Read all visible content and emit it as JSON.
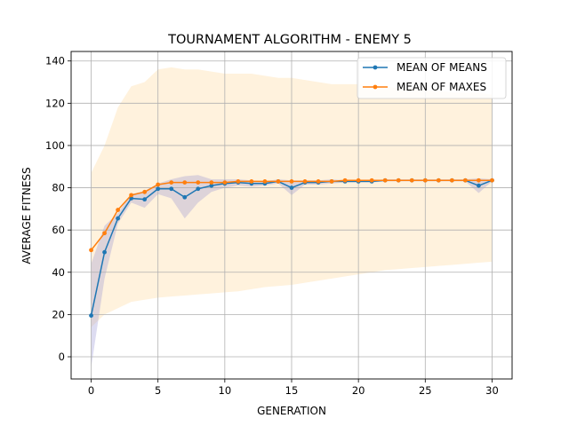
{
  "chart_data": {
    "type": "line",
    "title": "TOURNAMENT ALGORITHM - ENEMY 5",
    "xlabel": "GENERATION",
    "ylabel": "AVERAGE FITNESS",
    "xlim": [
      -1.5,
      31.5
    ],
    "ylim": [
      -10.5,
      144.5
    ],
    "xticks": [
      0,
      5,
      10,
      15,
      20,
      25,
      30
    ],
    "yticks": [
      0,
      20,
      40,
      60,
      80,
      100,
      120,
      140
    ],
    "grid": true,
    "legend_position": "top-right",
    "x": [
      0,
      1,
      2,
      3,
      4,
      5,
      6,
      7,
      8,
      9,
      10,
      11,
      12,
      13,
      14,
      15,
      16,
      17,
      18,
      19,
      20,
      21,
      22,
      23,
      24,
      25,
      26,
      27,
      28,
      29,
      30
    ],
    "series": [
      {
        "name": "MEAN OF MEANS",
        "color": "#1f77b4",
        "values": [
          19.5,
          49.5,
          65.5,
          75.0,
          74.5,
          79.5,
          79.5,
          75.5,
          79.5,
          81.0,
          82.0,
          82.5,
          82.0,
          82.0,
          83.0,
          80.0,
          82.5,
          82.5,
          83.0,
          83.0,
          83.0,
          83.0,
          83.5,
          83.5,
          83.5,
          83.5,
          83.5,
          83.5,
          83.5,
          81.0,
          83.5
        ],
        "band_low": [
          -5,
          37,
          63,
          73,
          70.5,
          77,
          75,
          65.5,
          73,
          78,
          80,
          81,
          80.5,
          81,
          82,
          76.5,
          81.5,
          81.5,
          82,
          82.5,
          82.5,
          82.5,
          83,
          83,
          83,
          83,
          83,
          83,
          83,
          77.5,
          83
        ],
        "band_high": [
          44,
          62,
          68,
          77,
          78.5,
          82,
          84,
          85.5,
          86,
          84,
          84,
          84,
          83.5,
          83,
          84,
          83.5,
          83.5,
          83.5,
          84,
          83.5,
          83.5,
          83.5,
          84,
          84,
          84,
          84,
          84,
          84,
          84,
          84.5,
          84
        ]
      },
      {
        "name": "MEAN OF MAXES",
        "color": "#ff7f0e",
        "values": [
          50.5,
          58.5,
          69.5,
          76.5,
          78.0,
          81.5,
          82.5,
          82.5,
          82.5,
          82.5,
          82.5,
          83.0,
          83.0,
          83.0,
          83.0,
          83.0,
          83.0,
          83.0,
          83.0,
          83.5,
          83.5,
          83.5,
          83.5,
          83.5,
          83.5,
          83.5,
          83.5,
          83.5,
          83.5,
          83.5,
          83.5
        ],
        "band_low": [
          14,
          20,
          23,
          26,
          27,
          28,
          28.5,
          29,
          29.5,
          30,
          30.5,
          31,
          32,
          33,
          33.5,
          34,
          35,
          36,
          37,
          38,
          39,
          40,
          41,
          41.5,
          42,
          42.5,
          43,
          43.5,
          44,
          44.5,
          45
        ],
        "band_high": [
          87,
          100,
          118,
          128,
          130,
          136,
          137,
          136,
          136,
          135,
          134,
          134,
          134,
          133,
          132,
          132,
          131,
          130,
          129,
          129,
          129,
          128,
          128,
          127,
          127,
          126,
          126,
          125,
          125,
          125,
          124
        ]
      }
    ]
  }
}
